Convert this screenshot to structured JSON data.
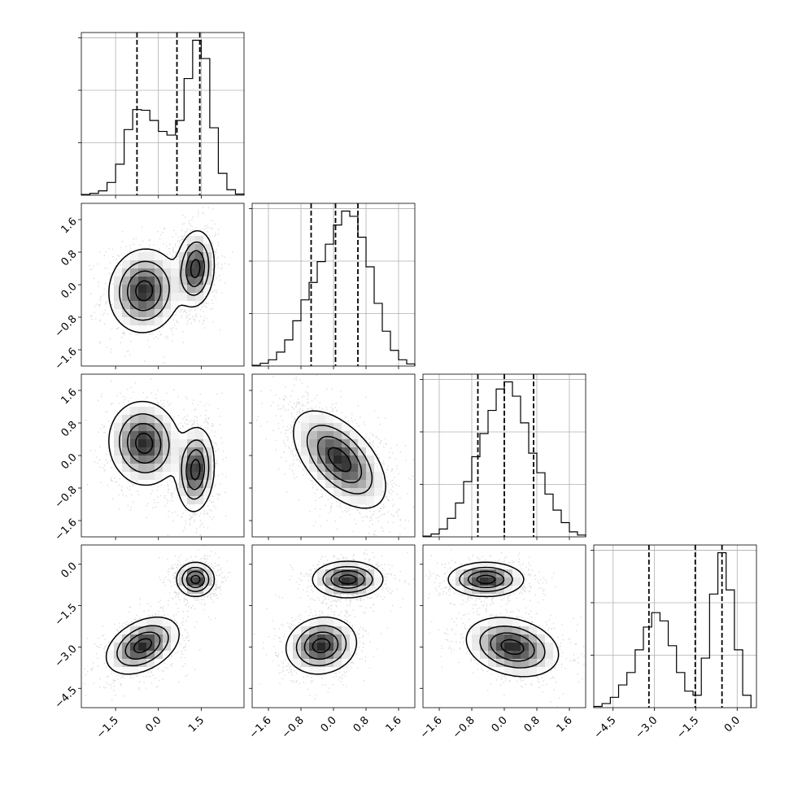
{
  "chart_data": {
    "type": "corner",
    "grid": true,
    "quantile_lines": "dashed",
    "params": [
      {
        "range": [
          -2.7,
          3.0
        ],
        "ticks": [
          -1.5,
          0.0,
          1.5
        ],
        "tick_labels": [
          "−1.5",
          "0.0",
          "1.5"
        ]
      },
      {
        "range": [
          -2.0,
          2.0
        ],
        "ticks": [
          -1.6,
          -0.8,
          0.0,
          0.8,
          1.6
        ],
        "tick_labels": [
          "−1.6",
          "−0.8",
          "0.0",
          "0.8",
          "1.6"
        ]
      },
      {
        "range": [
          -2.0,
          2.0
        ],
        "ticks": [
          -1.6,
          -0.8,
          0.0,
          0.8,
          1.6
        ],
        "tick_labels": [
          "−1.6",
          "−0.8",
          "0.0",
          "0.8",
          "1.6"
        ]
      },
      {
        "range": [
          -5.2,
          0.7
        ],
        "ticks": [
          -4.5,
          -3.0,
          -1.5,
          0.0
        ],
        "tick_labels": [
          "−4.5",
          "−3.0",
          "−1.5",
          "0.0"
        ]
      }
    ],
    "histograms": [
      {
        "param": 0,
        "quantiles": [
          -0.75,
          0.65,
          1.45
        ],
        "bin_edges": [
          -2.7,
          -2.4,
          -2.1,
          -1.8,
          -1.5,
          -1.2,
          -0.9,
          -0.6,
          -0.3,
          0.0,
          0.3,
          0.6,
          0.9,
          1.2,
          1.5,
          1.8,
          2.1,
          2.4,
          2.7,
          3.0
        ],
        "counts": [
          2,
          5,
          12,
          35,
          85,
          180,
          235,
          233,
          205,
          175,
          165,
          205,
          320,
          425,
          375,
          185,
          60,
          15,
          3
        ]
      },
      {
        "param": 1,
        "quantiles": [
          -0.55,
          0.05,
          0.6
        ],
        "bin_edges": [
          -2.0,
          -1.8,
          -1.6,
          -1.4,
          -1.2,
          -1.0,
          -0.8,
          -0.6,
          -0.4,
          -0.2,
          0.0,
          0.2,
          0.4,
          0.6,
          0.8,
          1.0,
          1.2,
          1.4,
          1.6,
          1.8,
          2.0
        ],
        "counts": [
          2,
          8,
          18,
          40,
          75,
          130,
          190,
          240,
          300,
          350,
          405,
          445,
          430,
          370,
          285,
          180,
          100,
          45,
          18,
          6
        ]
      },
      {
        "param": 2,
        "quantiles": [
          -0.65,
          0.0,
          0.72
        ],
        "bin_edges": [
          -2.0,
          -1.8,
          -1.6,
          -1.4,
          -1.2,
          -1.0,
          -0.8,
          -0.6,
          -0.4,
          -0.2,
          0.0,
          0.2,
          0.4,
          0.6,
          0.8,
          1.0,
          1.2,
          1.4,
          1.6,
          1.8,
          2.0
        ],
        "counts": [
          2,
          8,
          22,
          52,
          95,
          155,
          225,
          290,
          355,
          415,
          435,
          395,
          320,
          235,
          180,
          120,
          75,
          40,
          14,
          5
        ]
      },
      {
        "param": 3,
        "quantiles": [
          -3.2,
          -1.52,
          -0.55
        ],
        "bin_edges": [
          -5.2,
          -4.9,
          -4.6,
          -4.3,
          -4.0,
          -3.7,
          -3.4,
          -3.1,
          -2.8,
          -2.5,
          -2.2,
          -1.9,
          -1.6,
          -1.3,
          -1.0,
          -0.7,
          -0.4,
          -0.1,
          0.2,
          0.5
        ],
        "counts": [
          3,
          10,
          25,
          55,
          85,
          140,
          195,
          230,
          210,
          150,
          85,
          40,
          30,
          120,
          275,
          375,
          285,
          140,
          30
        ]
      }
    ],
    "pairs": [
      {
        "x": 0,
        "y": 1,
        "modes": [
          {
            "cx": -0.5,
            "cy": -0.15,
            "sx": 0.6,
            "sy": 0.5,
            "rho": 0.05,
            "w": 0.5
          },
          {
            "cx": 1.3,
            "cy": 0.4,
            "sx": 0.32,
            "sy": 0.45,
            "rho": 0.1,
            "w": 0.5
          }
        ]
      },
      {
        "x": 0,
        "y": 2,
        "modes": [
          {
            "cx": -0.5,
            "cy": 0.3,
            "sx": 0.6,
            "sy": 0.5,
            "rho": -0.05,
            "w": 0.5
          },
          {
            "cx": 1.3,
            "cy": -0.35,
            "sx": 0.32,
            "sy": 0.5,
            "rho": 0.1,
            "w": 0.5
          }
        ]
      },
      {
        "x": 0,
        "y": 3,
        "modes": [
          {
            "cx": -0.55,
            "cy": -2.95,
            "sx": 0.62,
            "sy": 0.5,
            "rho": 0.4,
            "w": 0.5
          },
          {
            "cx": 1.3,
            "cy": -0.55,
            "sx": 0.32,
            "sy": 0.3,
            "rho": 0.0,
            "w": 0.5
          }
        ]
      },
      {
        "x": 1,
        "y": 2,
        "modes": [
          {
            "cx": 0.15,
            "cy": -0.1,
            "sx": 0.55,
            "sy": 0.58,
            "rho": -0.55,
            "w": 1.0
          }
        ]
      },
      {
        "x": 1,
        "y": 3,
        "modes": [
          {
            "cx": 0.35,
            "cy": -0.55,
            "sx": 0.42,
            "sy": 0.32,
            "rho": 0.0,
            "w": 0.5
          },
          {
            "cx": -0.3,
            "cy": -2.95,
            "sx": 0.42,
            "sy": 0.5,
            "rho": 0.1,
            "w": 0.5
          }
        ]
      },
      {
        "x": 2,
        "y": 3,
        "modes": [
          {
            "cx": -0.45,
            "cy": -0.55,
            "sx": 0.45,
            "sy": 0.3,
            "rho": 0.0,
            "w": 0.5
          },
          {
            "cx": 0.2,
            "cy": -3.0,
            "sx": 0.55,
            "sy": 0.52,
            "rho": -0.25,
            "w": 0.5
          }
        ]
      }
    ]
  }
}
